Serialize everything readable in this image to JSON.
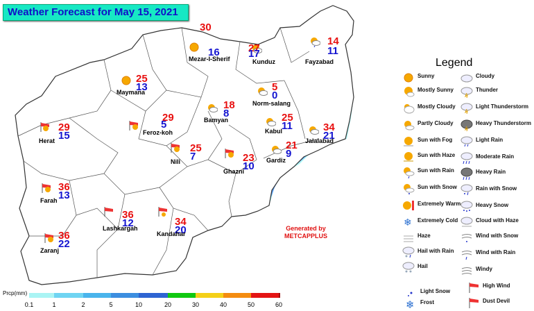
{
  "title": "Weather Forecast for May 15, 2021",
  "legend": {
    "title": "Legend",
    "items": [
      {
        "label": "Sunny",
        "icon": "sunny-icon"
      },
      {
        "label": "Cloudy",
        "icon": "cloudy-icon"
      },
      {
        "label": "Mostly Sunny",
        "icon": "mostly-sunny-icon"
      },
      {
        "label": "Thunder",
        "icon": "thunder-icon"
      },
      {
        "label": "Mostly Cloudy",
        "icon": "mostly-cloudy-icon"
      },
      {
        "label": "Light Thunderstorm",
        "icon": "light-thunderstorm-icon"
      },
      {
        "label": "Partly Cloudy",
        "icon": "partly-cloudy-icon"
      },
      {
        "label": "Heavy Thunderstorm",
        "icon": "heavy-thunderstorm-icon"
      },
      {
        "label": "Sun with Fog",
        "icon": "sun-with-fog-icon"
      },
      {
        "label": "Light Rain",
        "icon": "light-rain-icon"
      },
      {
        "label": "Sun with Haze",
        "icon": "sun-with-haze-icon"
      },
      {
        "label": "Moderate Rain",
        "icon": "moderate-rain-icon"
      },
      {
        "label": "Sun with Rain",
        "icon": "sun-with-rain-icon"
      },
      {
        "label": "Heavy Rain",
        "icon": "heavy-rain-icon"
      },
      {
        "label": "Sun with Snow",
        "icon": "sun-with-snow-icon"
      },
      {
        "label": "Rain with Snow",
        "icon": "rain-with-snow-icon"
      },
      {
        "label": "Extremely Warm",
        "icon": "extremely-warm-icon"
      },
      {
        "label": "Heavy Snow",
        "icon": "heavy-snow-icon"
      },
      {
        "label": "Extremely Cold",
        "icon": "extremely-cold-icon"
      },
      {
        "label": "Cloud with Haze",
        "icon": "cloud-with-haze-icon"
      },
      {
        "label": "Haze",
        "icon": "haze-icon"
      },
      {
        "label": "Wind with Snow",
        "icon": "wind-with-snow-icon"
      },
      {
        "label": "Hail with Rain",
        "icon": "hail-with-rain-icon"
      },
      {
        "label": "Wind with Rain",
        "icon": "wind-with-rain-icon"
      },
      {
        "label": "Hail",
        "icon": "hail-icon"
      },
      {
        "label": "Windy",
        "icon": "windy-icon"
      },
      {
        "label": "Light Snow",
        "icon": "light-snow-icon"
      },
      {
        "label": "High Wind",
        "icon": "high-wind-icon"
      },
      {
        "label": "Frost",
        "icon": "frost-icon"
      },
      {
        "label": "Dust Devil",
        "icon": "dust-devil-icon"
      }
    ]
  },
  "cities": [
    {
      "name": "Mezar-I-Sherif",
      "max": "30",
      "min": "16",
      "icon": "sunny-icon"
    },
    {
      "name": "Kunduz",
      "max": "27",
      "min": "17",
      "icon": "partly-cloudy-icon"
    },
    {
      "name": "Fayzabad",
      "max": "14",
      "min": "11",
      "icon": "sun-with-rain-icon"
    },
    {
      "name": "Maymana",
      "max": "25",
      "min": "13",
      "icon": "sunny-icon"
    },
    {
      "name": "Norm-salang",
      "max": "5",
      "min": "0",
      "icon": "sun-with-snow-icon"
    },
    {
      "name": "Bamyan",
      "max": "18",
      "min": "8",
      "icon": "sun-with-rain-icon"
    },
    {
      "name": "Kabul",
      "max": "25",
      "min": "11",
      "icon": "sun-with-rain-icon"
    },
    {
      "name": "Jalalabad",
      "max": "34",
      "min": "21",
      "icon": "sun-with-rain-icon"
    },
    {
      "name": "Herat",
      "max": "29",
      "min": "15",
      "icon": "high-wind-icon"
    },
    {
      "name": "Feroz-koh",
      "max": "29",
      "min": "5",
      "icon": "high-wind-icon"
    },
    {
      "name": "Nili",
      "max": "25",
      "min": "7",
      "icon": "high-wind-icon"
    },
    {
      "name": "Gardiz",
      "max": "21",
      "min": "9",
      "icon": "sun-with-rain-icon"
    },
    {
      "name": "Ghazni",
      "max": "23",
      "min": "10",
      "icon": "high-wind-icon"
    },
    {
      "name": "Farah",
      "max": "36",
      "min": "13",
      "icon": "high-wind-icon"
    },
    {
      "name": "Lashkargah",
      "max": "36",
      "min": "12",
      "icon": "high-wind-icon"
    },
    {
      "name": "Kandahar",
      "max": "34",
      "min": "20",
      "icon": "high-wind-icon"
    },
    {
      "name": "Zaranj",
      "max": "36",
      "min": "22",
      "icon": "high-wind-icon"
    }
  ],
  "credit": {
    "line1": "Generated by",
    "line2": "METCAPPLUS"
  },
  "precip_scale": {
    "label": "Prcp(mm)",
    "ticks": [
      "0.1",
      "1",
      "2",
      "5",
      "10",
      "20",
      "30",
      "40",
      "50",
      "60"
    ],
    "colors": [
      "#aaf4f4",
      "#6fd4f2",
      "#4ab4ec",
      "#3c8ee0",
      "#2e64d2",
      "#10c810",
      "#f4d018",
      "#f48c10",
      "#e41414",
      "#a01010"
    ]
  },
  "colors": {
    "title_bg": "#17e8c4",
    "title_text": "#1010c8",
    "max_temp": "#e81010",
    "min_temp": "#1414d0",
    "precip_light": "#aaf4f4",
    "precip_medium": "#5c9cf2"
  }
}
